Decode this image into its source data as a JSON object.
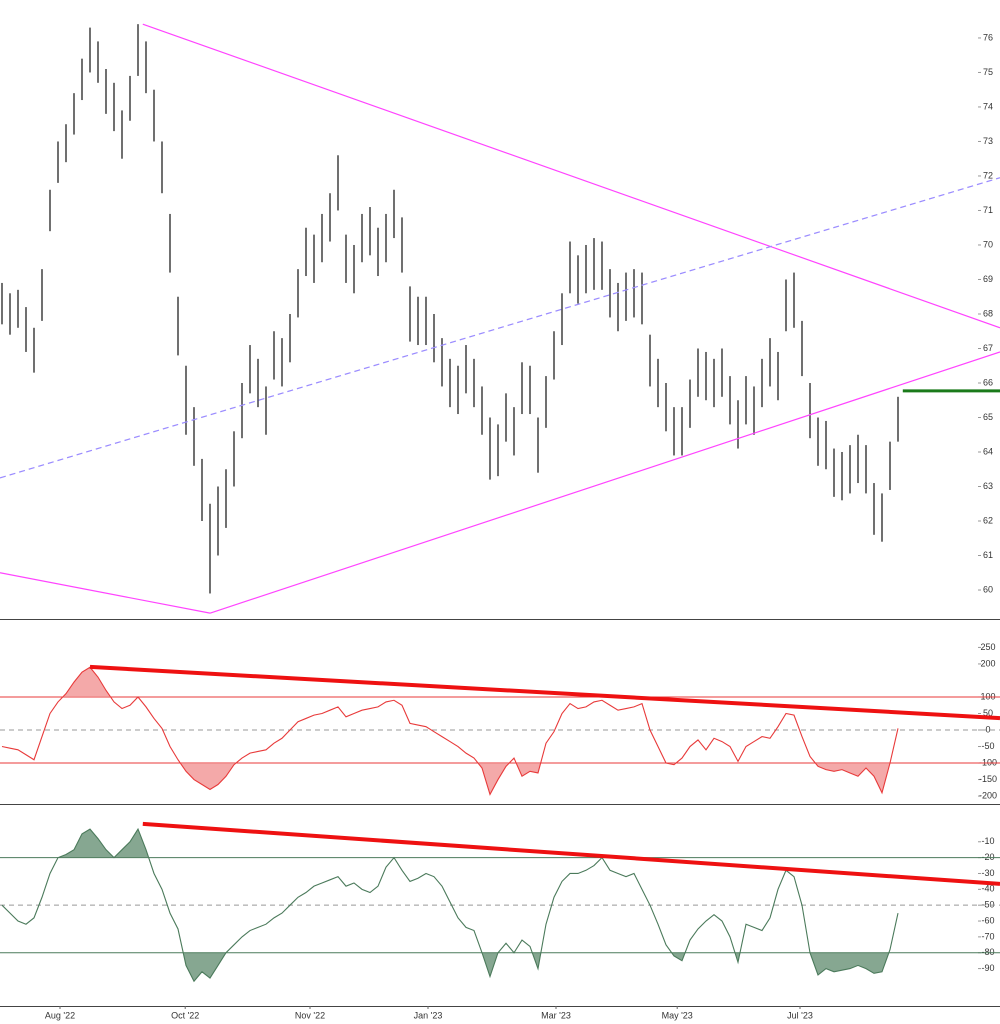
{
  "chart_data": [
    {
      "type": "hilo",
      "color": "#111111",
      "xlim": [
        -0.25,
        124.75
      ],
      "ylim": [
        59.16,
        77.1
      ],
      "yticks": [
        60,
        61,
        62,
        63,
        64,
        65,
        66,
        67,
        68,
        69,
        70,
        71,
        72,
        73,
        74,
        75,
        76
      ],
      "high": [
        68.9,
        68.6,
        68.7,
        68.2,
        67.6,
        69.3,
        71.6,
        73.0,
        73.5,
        74.4,
        75.4,
        76.3,
        75.9,
        75.1,
        74.7,
        73.9,
        74.9,
        76.4,
        75.9,
        74.5,
        73.0,
        70.9,
        68.5,
        66.5,
        65.3,
        63.8,
        62.5,
        63.0,
        63.5,
        64.6,
        66.0,
        67.1,
        66.7,
        65.9,
        67.5,
        67.3,
        68.0,
        69.3,
        70.5,
        70.3,
        70.9,
        71.5,
        72.6,
        70.3,
        70.0,
        70.9,
        71.1,
        70.5,
        70.9,
        71.6,
        70.8,
        68.8,
        68.5,
        68.5,
        68.0,
        67.3,
        66.7,
        66.5,
        67.1,
        66.7,
        65.9,
        65.0,
        64.8,
        65.7,
        65.3,
        66.6,
        66.5,
        65.0,
        66.2,
        67.5,
        68.6,
        70.1,
        69.7,
        70.0,
        70.2,
        70.1,
        69.3,
        68.9,
        69.2,
        69.3,
        69.2,
        67.4,
        66.7,
        66.0,
        65.3,
        65.3,
        66.1,
        67.0,
        66.9,
        66.7,
        67.0,
        66.2,
        65.5,
        66.2,
        65.9,
        66.7,
        67.3,
        66.9,
        69.0,
        69.2,
        67.8,
        66.0,
        65.0,
        64.9,
        64.1,
        64.0,
        64.2,
        64.5,
        64.2,
        63.1,
        62.8,
        64.3,
        65.6
      ],
      "low": [
        67.7,
        67.4,
        67.6,
        66.9,
        66.3,
        67.8,
        70.4,
        71.8,
        72.4,
        73.2,
        74.2,
        75.0,
        74.7,
        73.8,
        73.3,
        72.5,
        73.6,
        74.9,
        74.4,
        73.0,
        71.5,
        69.2,
        66.8,
        64.5,
        63.6,
        62.0,
        59.9,
        61.0,
        61.8,
        63.0,
        64.4,
        65.7,
        65.3,
        64.5,
        66.1,
        65.9,
        66.6,
        67.9,
        69.1,
        68.9,
        69.5,
        70.1,
        71.0,
        68.9,
        68.6,
        69.5,
        69.7,
        69.1,
        69.5,
        70.2,
        69.2,
        67.2,
        67.1,
        67.1,
        66.6,
        65.9,
        65.3,
        65.1,
        65.7,
        65.3,
        64.5,
        63.2,
        63.3,
        64.3,
        63.9,
        65.1,
        65.1,
        63.4,
        64.7,
        66.1,
        67.1,
        68.6,
        68.3,
        68.6,
        68.7,
        68.7,
        67.9,
        67.5,
        67.8,
        67.9,
        67.7,
        65.9,
        65.3,
        64.6,
        63.9,
        63.9,
        64.7,
        65.6,
        65.5,
        65.3,
        65.6,
        64.8,
        64.1,
        64.8,
        64.5,
        65.3,
        65.9,
        65.5,
        67.5,
        67.6,
        66.2,
        64.4,
        63.6,
        63.5,
        62.7,
        62.6,
        62.8,
        63.1,
        62.8,
        61.6,
        61.4,
        62.9,
        64.3
      ],
      "trendlines": [
        {
          "color": "#ff44ff",
          "x": [
            17.6,
            124.75
          ],
          "y": [
            76.4,
            67.6
          ]
        },
        {
          "color": "#ff44ff",
          "x": [
            26,
            124.75
          ],
          "y": [
            59.33,
            66.9
          ]
        },
        {
          "color": "#ff44ff",
          "x": [
            -0.25,
            26
          ],
          "y": [
            60.5,
            59.33
          ]
        },
        {
          "color": "#9b8cff",
          "dashed": true,
          "x": [
            -0.25,
            124.75
          ],
          "y": [
            63.25,
            71.95
          ]
        },
        {
          "color": "#1a7a1a",
          "width": 3,
          "x": [
            112.6,
            124.75
          ],
          "y": [
            65.77,
            65.77
          ]
        }
      ]
    },
    {
      "type": "line",
      "color": "#e83a3a",
      "fill": "#f08c8c",
      "xlim": [
        -0.25,
        124.75
      ],
      "ylim": [
        -224,
        333
      ],
      "yticks": [
        250,
        200,
        100,
        50,
        0,
        -50,
        -100,
        -150,
        -200
      ],
      "overbought": 100,
      "oversold": -100,
      "midline": 0,
      "values": [
        -50,
        -55,
        -60,
        -75,
        -90,
        -20,
        50,
        85,
        110,
        145,
        175,
        190,
        160,
        120,
        85,
        65,
        75,
        100,
        70,
        35,
        5,
        -50,
        -90,
        -125,
        -150,
        -165,
        -180,
        -165,
        -140,
        -105,
        -85,
        -70,
        -65,
        -60,
        -40,
        -25,
        0,
        25,
        35,
        45,
        50,
        60,
        70,
        40,
        50,
        60,
        65,
        70,
        85,
        90,
        75,
        20,
        15,
        10,
        -5,
        -20,
        -35,
        -50,
        -70,
        -85,
        -115,
        -195,
        -150,
        -110,
        -85,
        -140,
        -125,
        -130,
        -40,
        -5,
        50,
        80,
        65,
        70,
        85,
        90,
        75,
        60,
        65,
        70,
        80,
        0,
        -50,
        -100,
        -105,
        -85,
        -50,
        -30,
        -60,
        -25,
        -35,
        -50,
        -95,
        -50,
        -35,
        -20,
        -25,
        10,
        50,
        45,
        -20,
        -80,
        -110,
        -120,
        -125,
        -120,
        -130,
        -140,
        -115,
        -140,
        -190,
        -100,
        5
      ],
      "trendlines": [
        {
          "color": "#ee1111",
          "width": 4,
          "x": [
            11,
            124.75
          ],
          "y": [
            191,
            36
          ]
        }
      ]
    },
    {
      "type": "line",
      "color": "#4b7a5b",
      "fill": "#5e8a6c",
      "xlim": [
        -0.25,
        124.75
      ],
      "ylim": [
        -113.6,
        13.2
      ],
      "yticks": [
        -10,
        -20,
        -30,
        -40,
        -50,
        -60,
        -70,
        -80,
        -90
      ],
      "overbought": -20,
      "oversold": -80,
      "midline": -50,
      "values": [
        -50,
        -55,
        -60,
        -62,
        -58,
        -45,
        -30,
        -20,
        -18,
        -15,
        -5,
        -2,
        -8,
        -15,
        -20,
        -15,
        -10,
        -2,
        -15,
        -30,
        -40,
        -55,
        -65,
        -88,
        -98,
        -92,
        -96,
        -88,
        -80,
        -75,
        -70,
        -66,
        -64,
        -62,
        -58,
        -55,
        -50,
        -45,
        -42,
        -38,
        -36,
        -34,
        -32,
        -38,
        -36,
        -40,
        -42,
        -38,
        -26,
        -20,
        -28,
        -35,
        -33,
        -30,
        -32,
        -38,
        -48,
        -58,
        -64,
        -66,
        -80,
        -95,
        -80,
        -74,
        -80,
        -72,
        -76,
        -90,
        -62,
        -45,
        -35,
        -30,
        -30,
        -28,
        -25,
        -20,
        -28,
        -30,
        -32,
        -30,
        -40,
        -50,
        -62,
        -75,
        -82,
        -85,
        -72,
        -65,
        -60,
        -56,
        -60,
        -70,
        -86,
        -62,
        -64,
        -66,
        -58,
        -40,
        -28,
        -32,
        -50,
        -80,
        -94,
        -90,
        -92,
        -91,
        -90,
        -88,
        -90,
        -93,
        -92,
        -78,
        -55
      ],
      "trendlines": [
        {
          "color": "#ee1111",
          "width": 4,
          "x": [
            17.6,
            124.75
          ],
          "y": [
            1.3,
            -36.6
          ]
        }
      ],
      "xticks": [
        {
          "value": 7.25,
          "label": "Aug '22"
        },
        {
          "value": 22.9,
          "label": "Oct '22"
        },
        {
          "value": 38.5,
          "label": "Nov '22"
        },
        {
          "value": 53.25,
          "label": "Jan '23"
        },
        {
          "value": 69.25,
          "label": "Mar '23"
        },
        {
          "value": 84.4,
          "label": "May '23"
        },
        {
          "value": 99.75,
          "label": "Jul '23"
        }
      ]
    }
  ]
}
